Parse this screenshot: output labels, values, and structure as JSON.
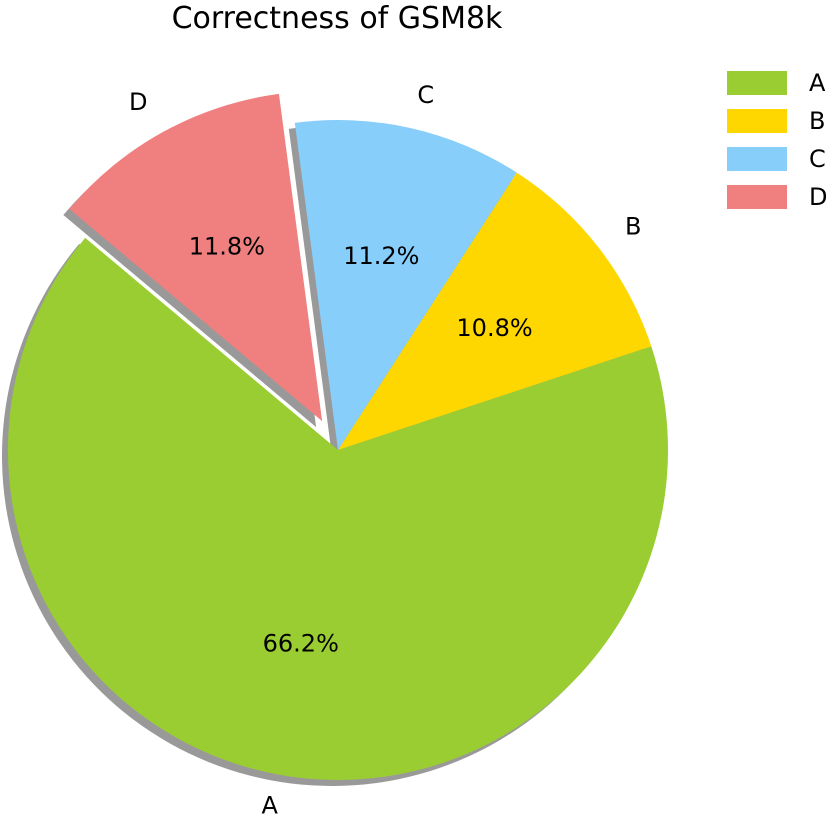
{
  "chart_data": {
    "type": "pie",
    "title": "Correctness of GSM8k",
    "slices": [
      {
        "label": "A",
        "value": 66.2,
        "pct_label": "66.2%",
        "color": "#9acd32",
        "exploded": false
      },
      {
        "label": "B",
        "value": 10.8,
        "pct_label": "10.8%",
        "color": "#ffd700",
        "exploded": false
      },
      {
        "label": "C",
        "value": 11.2,
        "pct_label": "11.2%",
        "color": "#87cefa",
        "exploded": false
      },
      {
        "label": "D",
        "value": 11.8,
        "pct_label": "11.8%",
        "color": "#f08080",
        "exploded": true
      }
    ],
    "shadow": true,
    "legend": {
      "position": "top-right",
      "entries": [
        "A",
        "B",
        "C",
        "D"
      ]
    }
  }
}
